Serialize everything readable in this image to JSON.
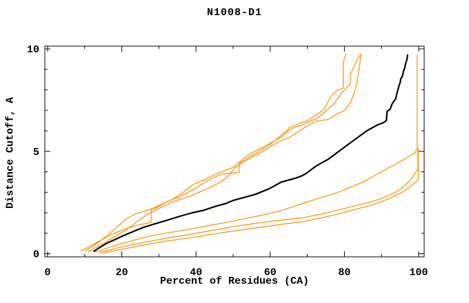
{
  "window": {
    "background": "#ffffff"
  },
  "chart_data": {
    "type": "line",
    "title": "N1008-D1",
    "xlabel": "Percent of Residues (CA)",
    "ylabel": "Distance Cutoff, A",
    "xlim": [
      0,
      100
    ],
    "ylim": [
      0,
      10
    ],
    "x_major_ticks": [
      0,
      20,
      40,
      60,
      80,
      100
    ],
    "x_minor_tick_step": 10,
    "y_major_ticks": [
      0,
      5,
      10
    ],
    "y_minor_tick_step": 1,
    "grid": false,
    "legend": "none",
    "box_border": true,
    "colors": {
      "main": "#000000",
      "reference": "#ff8c00"
    },
    "series": [
      {
        "name": "black-main-curve",
        "color": "#000000",
        "width": 2.2,
        "points": [
          [
            12.5,
            0.12
          ],
          [
            14,
            0.3
          ],
          [
            16,
            0.52
          ],
          [
            18,
            0.68
          ],
          [
            20,
            0.85
          ],
          [
            23,
            1.08
          ],
          [
            26,
            1.3
          ],
          [
            30,
            1.52
          ],
          [
            33,
            1.68
          ],
          [
            36,
            1.85
          ],
          [
            39,
            2.0
          ],
          [
            42,
            2.12
          ],
          [
            45,
            2.3
          ],
          [
            48,
            2.45
          ],
          [
            50,
            2.6
          ],
          [
            53,
            2.75
          ],
          [
            56,
            2.9
          ],
          [
            58,
            3.05
          ],
          [
            60,
            3.2
          ],
          [
            61.5,
            3.35
          ],
          [
            63,
            3.5
          ],
          [
            65,
            3.6
          ],
          [
            67,
            3.7
          ],
          [
            68.5,
            3.8
          ],
          [
            69.5,
            3.9
          ],
          [
            71,
            4.1
          ],
          [
            72.5,
            4.3
          ],
          [
            74,
            4.45
          ],
          [
            75.5,
            4.6
          ],
          [
            77,
            4.8
          ],
          [
            78.5,
            5.0
          ],
          [
            80,
            5.2
          ],
          [
            81.5,
            5.4
          ],
          [
            83,
            5.6
          ],
          [
            84.5,
            5.8
          ],
          [
            86,
            6.0
          ],
          [
            87.5,
            6.15
          ],
          [
            89,
            6.3
          ],
          [
            90.5,
            6.4
          ],
          [
            91.3,
            6.5
          ],
          [
            91.5,
            6.95
          ],
          [
            92.3,
            7.05
          ],
          [
            92.8,
            7.3
          ],
          [
            93.3,
            7.45
          ],
          [
            93.8,
            7.55
          ],
          [
            94.1,
            7.8
          ],
          [
            94.4,
            8.0
          ],
          [
            94.7,
            8.2
          ],
          [
            95,
            8.35
          ],
          [
            95.2,
            8.55
          ],
          [
            95.6,
            8.65
          ],
          [
            95.9,
            8.9
          ],
          [
            96.2,
            9.05
          ],
          [
            96.5,
            9.3
          ],
          [
            96.8,
            9.45
          ],
          [
            97,
            9.7
          ]
        ]
      },
      {
        "name": "orange-curve-1",
        "color": "#ff8c00",
        "width": 1.2,
        "points": [
          [
            9,
            0.15
          ],
          [
            10.5,
            0.28
          ],
          [
            12,
            0.42
          ],
          [
            13.5,
            0.58
          ],
          [
            15,
            0.72
          ],
          [
            17,
            0.92
          ],
          [
            19,
            1.08
          ],
          [
            21.5,
            1.25
          ],
          [
            24,
            1.38
          ],
          [
            26.5,
            1.48
          ],
          [
            27.9,
            1.53
          ],
          [
            27.9,
            2.13
          ],
          [
            29.4,
            2.25
          ],
          [
            32.3,
            2.55
          ],
          [
            35,
            2.75
          ],
          [
            36.8,
            2.9
          ],
          [
            39.5,
            3.15
          ],
          [
            41.6,
            3.4
          ],
          [
            44,
            3.65
          ],
          [
            46.7,
            3.88
          ],
          [
            49,
            3.93
          ],
          [
            51.7,
            3.98
          ],
          [
            51.7,
            4.42
          ],
          [
            54,
            4.68
          ],
          [
            57,
            5.0
          ],
          [
            60,
            5.35
          ],
          [
            63,
            5.78
          ],
          [
            65.2,
            6.15
          ],
          [
            67.5,
            6.33
          ],
          [
            70,
            6.5
          ],
          [
            72.5,
            6.8
          ],
          [
            74.5,
            7.05
          ],
          [
            76.4,
            7.7
          ],
          [
            78.3,
            8.0
          ],
          [
            79.7,
            8.08
          ],
          [
            79.7,
            9.35
          ],
          [
            80.1,
            9.58
          ],
          [
            80.4,
            9.75
          ]
        ]
      },
      {
        "name": "orange-curve-2",
        "color": "#ff8c00",
        "width": 1.2,
        "points": [
          [
            10,
            0.12
          ],
          [
            12,
            0.35
          ],
          [
            14,
            0.6
          ],
          [
            16.5,
            0.95
          ],
          [
            19,
            1.35
          ],
          [
            21.2,
            1.7
          ],
          [
            23.5,
            1.93
          ],
          [
            27.3,
            2.15
          ],
          [
            30,
            2.35
          ],
          [
            33.6,
            2.65
          ],
          [
            36.5,
            3.0
          ],
          [
            39.2,
            3.38
          ],
          [
            42,
            3.6
          ],
          [
            45,
            3.85
          ],
          [
            48,
            4.08
          ],
          [
            50.4,
            4.25
          ],
          [
            52.5,
            4.6
          ],
          [
            54.7,
            4.9
          ],
          [
            57.5,
            5.15
          ],
          [
            60.5,
            5.45
          ],
          [
            63,
            5.7
          ],
          [
            65.2,
            6.05
          ],
          [
            67,
            6.2
          ],
          [
            68.4,
            6.27
          ],
          [
            70.5,
            6.45
          ],
          [
            72.7,
            6.62
          ],
          [
            75,
            6.95
          ],
          [
            77.3,
            7.35
          ],
          [
            79.2,
            7.85
          ],
          [
            81,
            8.18
          ],
          [
            81.6,
            8.3
          ],
          [
            81.6,
            8.76
          ],
          [
            82.5,
            9.1
          ],
          [
            83.5,
            9.5
          ],
          [
            84.4,
            9.75
          ]
        ]
      },
      {
        "name": "orange-curve-3",
        "color": "#ff8c00",
        "width": 1.2,
        "points": [
          [
            11,
            0.1
          ],
          [
            13.5,
            0.35
          ],
          [
            16,
            0.62
          ],
          [
            18.5,
            0.88
          ],
          [
            21,
            1.15
          ],
          [
            24,
            1.55
          ],
          [
            27.3,
            1.97
          ],
          [
            30.5,
            2.25
          ],
          [
            34,
            2.55
          ],
          [
            37,
            2.72
          ],
          [
            39.2,
            2.87
          ],
          [
            42,
            3.1
          ],
          [
            44.5,
            3.3
          ],
          [
            46.7,
            3.5
          ],
          [
            49,
            3.85
          ],
          [
            50.4,
            4.18
          ],
          [
            53,
            4.5
          ],
          [
            56,
            4.8
          ],
          [
            59,
            5.1
          ],
          [
            62,
            5.45
          ],
          [
            65.2,
            5.68
          ],
          [
            67.5,
            5.95
          ],
          [
            70,
            6.25
          ],
          [
            72.7,
            6.48
          ],
          [
            75.5,
            6.55
          ],
          [
            78.3,
            6.85
          ],
          [
            80.1,
            7.0
          ],
          [
            81.6,
            7.35
          ],
          [
            82.9,
            8.0
          ],
          [
            83.7,
            8.7
          ],
          [
            84.1,
            9.2
          ],
          [
            84.4,
            9.7
          ]
        ]
      },
      {
        "name": "orange-curve-4",
        "color": "#ff8c00",
        "width": 1.2,
        "points": [
          [
            13,
            0.08
          ],
          [
            16,
            0.28
          ],
          [
            20,
            0.5
          ],
          [
            25,
            0.75
          ],
          [
            30,
            0.95
          ],
          [
            35,
            1.1
          ],
          [
            39,
            1.22
          ],
          [
            44,
            1.4
          ],
          [
            48,
            1.52
          ],
          [
            52,
            1.67
          ],
          [
            56,
            1.82
          ],
          [
            60,
            1.97
          ],
          [
            64,
            2.17
          ],
          [
            69,
            2.47
          ],
          [
            73,
            2.7
          ],
          [
            77,
            2.92
          ],
          [
            80,
            3.12
          ],
          [
            83,
            3.35
          ],
          [
            85,
            3.5
          ],
          [
            87.5,
            3.75
          ],
          [
            90,
            4.0
          ],
          [
            92,
            4.2
          ],
          [
            94,
            4.4
          ],
          [
            96,
            4.6
          ],
          [
            97.8,
            4.8
          ],
          [
            98.8,
            4.9
          ],
          [
            99.3,
            5.0
          ],
          [
            99.6,
            5.12
          ],
          [
            99.6,
            9.7
          ]
        ]
      },
      {
        "name": "orange-curve-5",
        "color": "#ff8c00",
        "width": 1.2,
        "points": [
          [
            14,
            0.05
          ],
          [
            18,
            0.25
          ],
          [
            23,
            0.45
          ],
          [
            28,
            0.63
          ],
          [
            33,
            0.79
          ],
          [
            39.2,
            0.97
          ],
          [
            45,
            1.16
          ],
          [
            50,
            1.32
          ],
          [
            55,
            1.46
          ],
          [
            60,
            1.58
          ],
          [
            65,
            1.68
          ],
          [
            69,
            1.76
          ],
          [
            74,
            1.95
          ],
          [
            78,
            2.12
          ],
          [
            82,
            2.3
          ],
          [
            85,
            2.43
          ],
          [
            87.5,
            2.55
          ],
          [
            90,
            2.7
          ],
          [
            92,
            2.85
          ],
          [
            94,
            3.02
          ],
          [
            95.8,
            3.25
          ],
          [
            97.2,
            3.5
          ],
          [
            98.4,
            3.75
          ],
          [
            99.3,
            4.0
          ],
          [
            99.8,
            4.18
          ],
          [
            99.8,
            5.15
          ]
        ]
      },
      {
        "name": "orange-curve-6",
        "color": "#ff8c00",
        "width": 1.2,
        "points": [
          [
            15,
            0.03
          ],
          [
            20,
            0.22
          ],
          [
            26,
            0.43
          ],
          [
            32,
            0.62
          ],
          [
            39.2,
            0.8
          ],
          [
            46,
            1.0
          ],
          [
            52,
            1.16
          ],
          [
            58,
            1.31
          ],
          [
            64,
            1.46
          ],
          [
            69,
            1.57
          ],
          [
            74,
            1.76
          ],
          [
            79,
            1.97
          ],
          [
            83,
            2.17
          ],
          [
            87.5,
            2.38
          ],
          [
            91,
            2.62
          ],
          [
            93.5,
            2.82
          ],
          [
            95.5,
            3.0
          ],
          [
            97,
            3.18
          ],
          [
            98.2,
            3.35
          ],
          [
            99.2,
            3.5
          ],
          [
            99.9,
            3.63
          ],
          [
            99.9,
            5.1
          ]
        ]
      }
    ]
  }
}
